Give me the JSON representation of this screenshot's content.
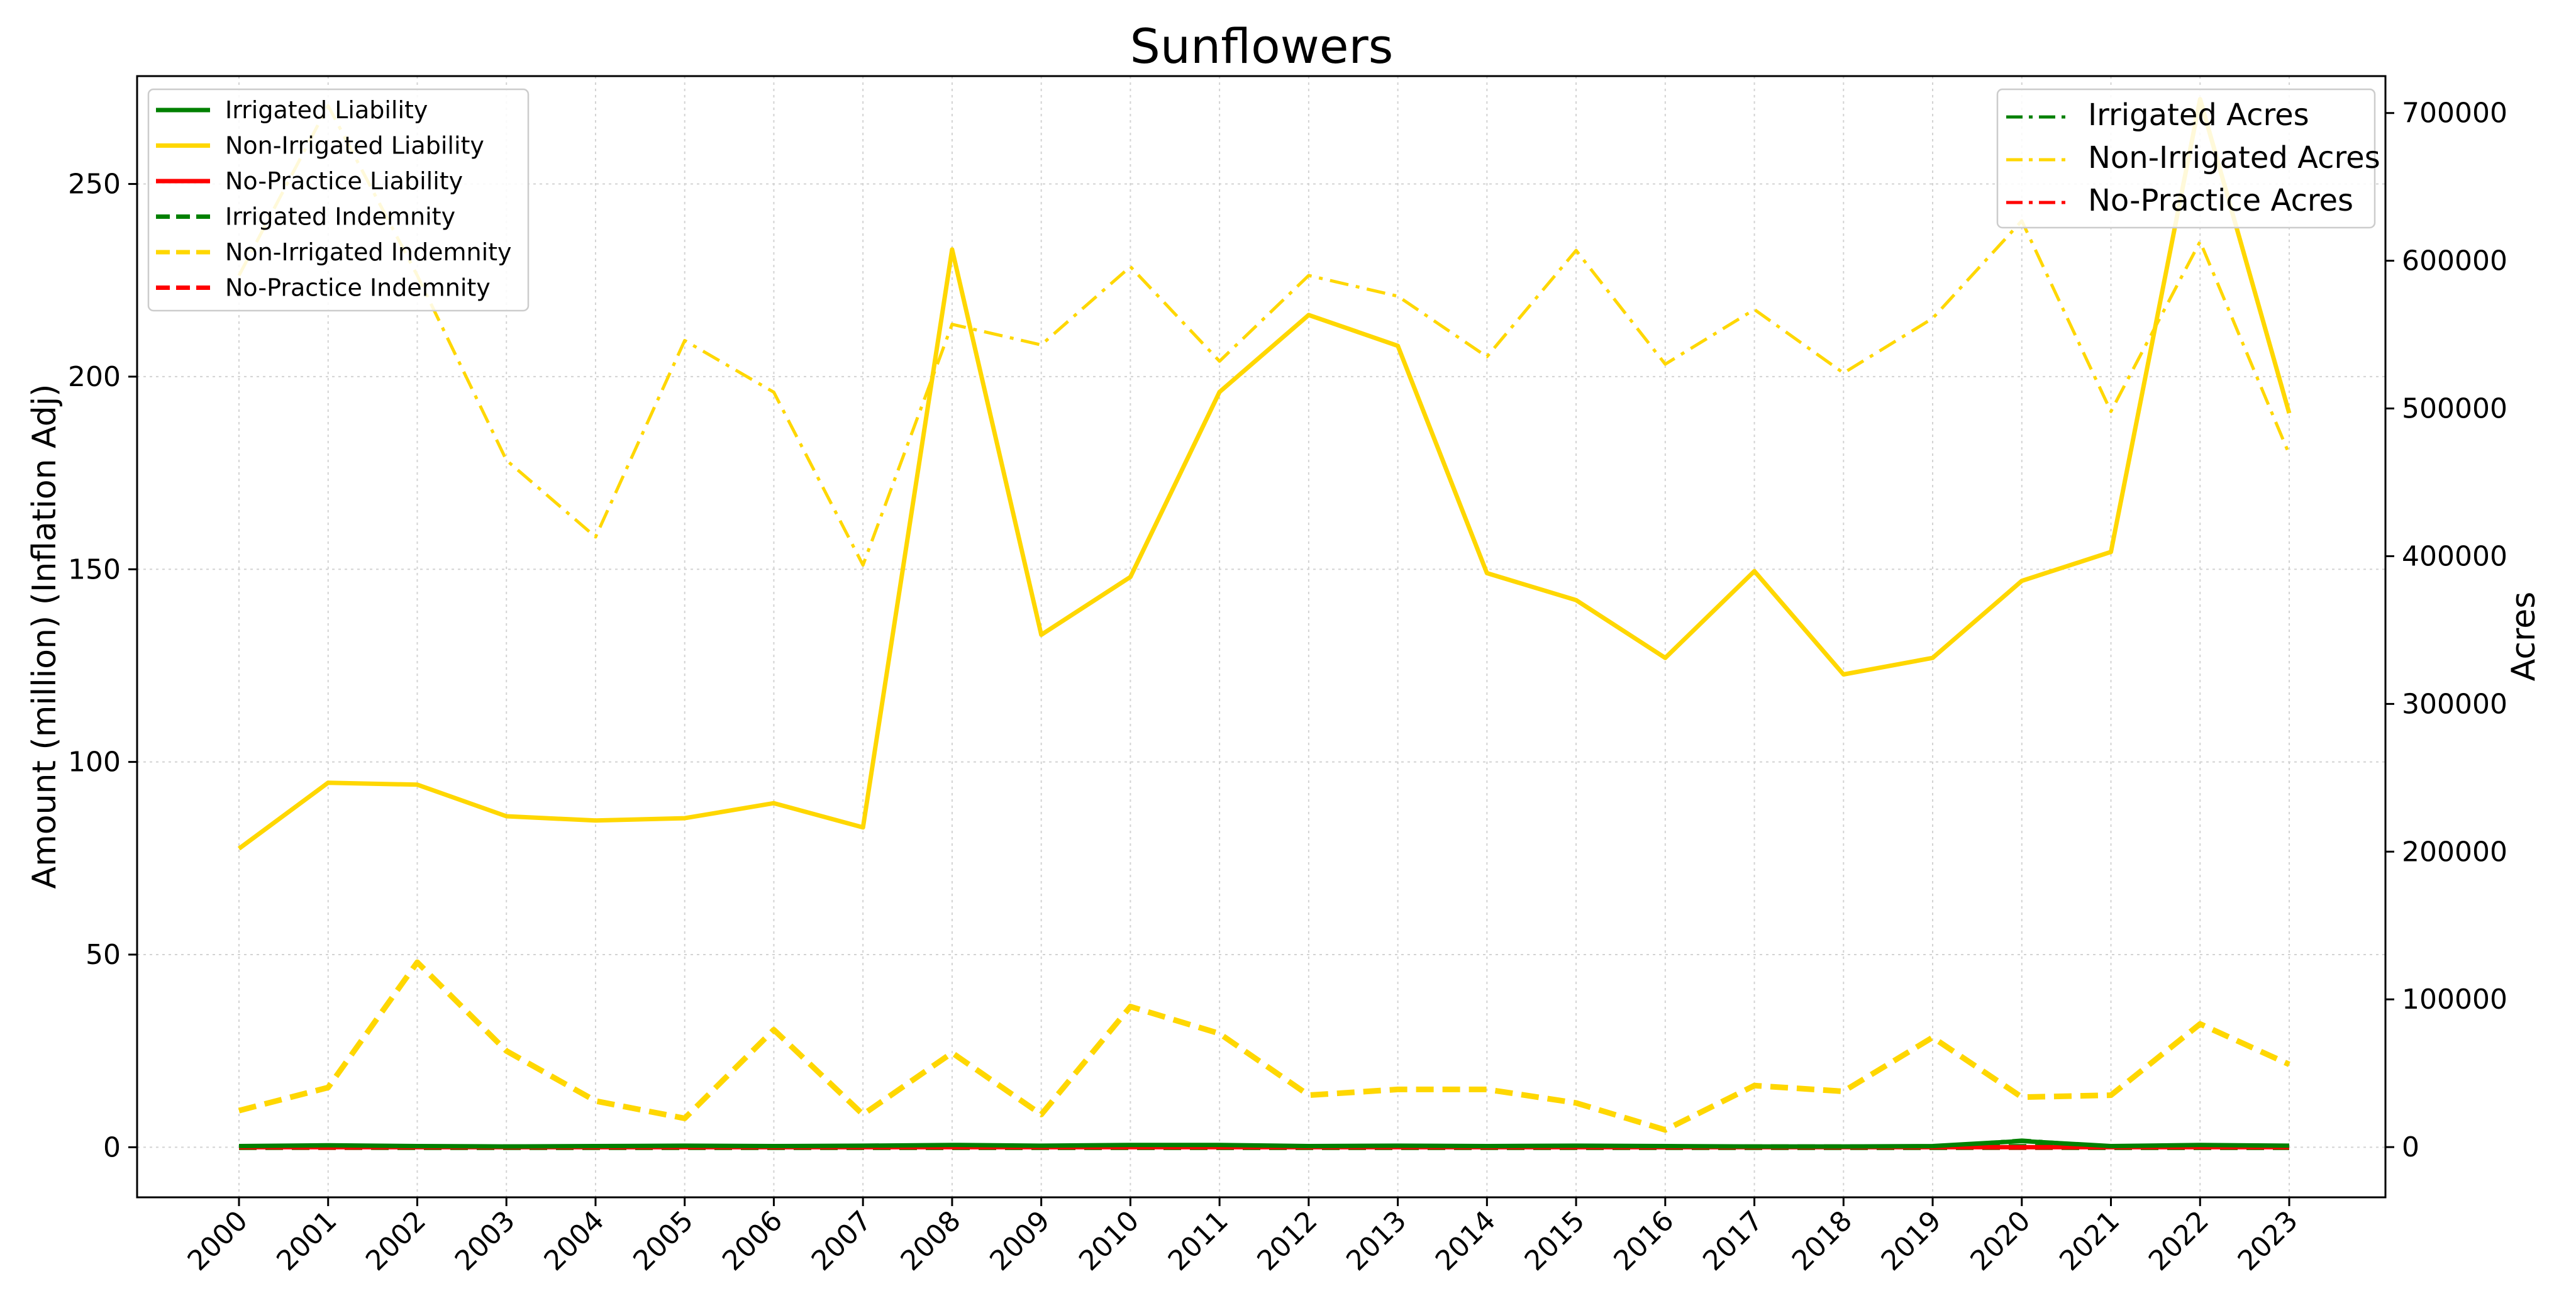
{
  "chart_data": {
    "type": "line",
    "title": "Sunflowers",
    "ylabel": "Amount (million) (Inflation Adj)",
    "y2label": "Acres",
    "x": [
      "2000",
      "2001",
      "2002",
      "2003",
      "2004",
      "2005",
      "2006",
      "2007",
      "2008",
      "2009",
      "2010",
      "2011",
      "2012",
      "2013",
      "2014",
      "2015",
      "2016",
      "2017",
      "2018",
      "2019",
      "2020",
      "2021",
      "2022",
      "2023"
    ],
    "ylim": [
      -13,
      278
    ],
    "y2lim": [
      -34000,
      725000
    ],
    "yticks": [
      "0",
      "50",
      "100",
      "150",
      "200",
      "250"
    ],
    "y2ticks": [
      "0",
      "100000",
      "200000",
      "300000",
      "400000",
      "500000",
      "600000",
      "700000"
    ],
    "grid": true,
    "series": [
      {
        "name": "Irrigated Liability",
        "axis": "left",
        "style": "solid",
        "color": "#008000",
        "values": [
          0.3,
          0.5,
          0.3,
          0.2,
          0.3,
          0.4,
          0.3,
          0.4,
          0.6,
          0.4,
          0.6,
          0.6,
          0.3,
          0.4,
          0.3,
          0.4,
          0.3,
          0.2,
          0.2,
          0.3,
          1.6,
          0.3,
          0.6,
          0.4
        ]
      },
      {
        "name": "Non-Irrigated Liability",
        "axis": "left",
        "style": "solid",
        "color": "#FFD700",
        "values": [
          77.5,
          94.6,
          94.1,
          85.9,
          84.8,
          85.4,
          89.3,
          83.0,
          233.0,
          133.0,
          148.0,
          196.0,
          216.0,
          208.0,
          149.0,
          142.0,
          127.0,
          149.5,
          122.7,
          127.0,
          147.0,
          154.5,
          272.0,
          190.5
        ]
      },
      {
        "name": "No-Practice Liability",
        "axis": "left",
        "style": "solid",
        "color": "#FF0000",
        "values": [
          0,
          0,
          0,
          0,
          0,
          0,
          0,
          0,
          0,
          0,
          0,
          0,
          0,
          0,
          0,
          0,
          0,
          0,
          0,
          0,
          0,
          0,
          0,
          0
        ]
      },
      {
        "name": "Irrigated Indemnity",
        "axis": "left",
        "style": "dashed",
        "color": "#008000",
        "values": [
          0,
          0.1,
          0,
          0,
          0,
          0,
          0,
          0,
          0,
          0,
          0,
          0,
          0,
          0,
          0,
          0,
          0,
          0,
          0,
          0,
          0.1,
          0,
          0,
          0
        ]
      },
      {
        "name": "Non-Irrigated Indemnity",
        "axis": "left",
        "style": "dashed",
        "color": "#FFD700",
        "values": [
          9.5,
          15.5,
          48.0,
          25.0,
          12.0,
          7.5,
          30.5,
          8.5,
          24.5,
          8.5,
          36.5,
          29.5,
          13.5,
          15.0,
          15.0,
          11.5,
          4.5,
          16.0,
          14.5,
          28.5,
          13.0,
          13.5,
          32.0,
          21.5
        ]
      },
      {
        "name": "No-Practice Indemnity",
        "axis": "left",
        "style": "dashed",
        "color": "#FF0000",
        "values": [
          0,
          0,
          0,
          0,
          0,
          0,
          0,
          0,
          0,
          0,
          0,
          0,
          0,
          0,
          0,
          0,
          0,
          0,
          0,
          0,
          0,
          0,
          0,
          0
        ]
      },
      {
        "name": "Irrigated Acres",
        "axis": "right",
        "style": "dashdot",
        "color": "#008000",
        "values": [
          500,
          800,
          400,
          300,
          400,
          600,
          500,
          700,
          1200,
          700,
          1400,
          1200,
          700,
          1000,
          600,
          800,
          500,
          400,
          300,
          500,
          4800,
          600,
          1500,
          900
        ]
      },
      {
        "name": "Non-Irrigated Acres",
        "axis": "right",
        "style": "dashdot",
        "color": "#FFD700",
        "values": [
          590000,
          705000,
          590000,
          465000,
          413000,
          546000,
          511000,
          394000,
          557000,
          543000,
          596000,
          532000,
          590000,
          576000,
          535000,
          607000,
          530000,
          567000,
          524000,
          561000,
          627000,
          498000,
          613000,
          469000
        ]
      },
      {
        "name": "No-Practice Acres",
        "axis": "right",
        "style": "dashdot",
        "color": "#FF0000",
        "values": [
          0,
          0,
          0,
          0,
          0,
          0,
          0,
          0,
          0,
          0,
          0,
          0,
          0,
          0,
          0,
          0,
          0,
          0,
          0,
          0,
          0,
          0,
          0,
          0
        ]
      }
    ],
    "legend_left": {
      "placement": "top-left",
      "entries": [
        "Irrigated Liability",
        "Non-Irrigated Liability",
        "No-Practice Liability",
        "Irrigated Indemnity",
        "Non-Irrigated Indemnity",
        "No-Practice Indemnity"
      ]
    },
    "legend_right": {
      "placement": "top-right",
      "entries": [
        "Irrigated Acres",
        "Non-Irrigated Acres",
        "No-Practice Acres"
      ]
    }
  }
}
